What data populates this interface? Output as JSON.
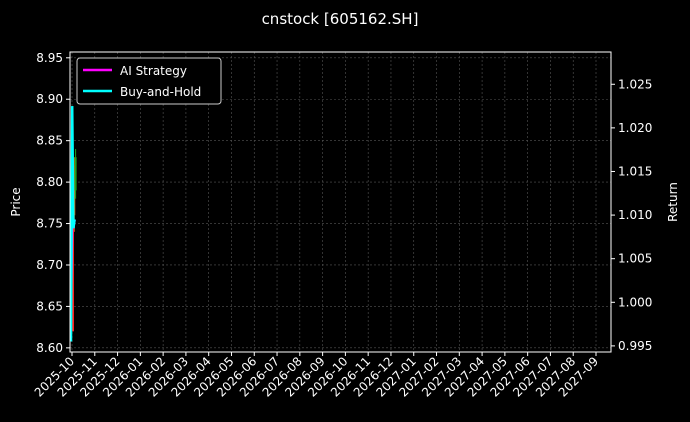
{
  "chart_data": {
    "type": "line",
    "title": "cnstock [605162.SH]",
    "ylabel": "Price",
    "y2label": "Return",
    "ylim": [
      8.595,
      8.957
    ],
    "y2lim": [
      0.9943,
      1.0287
    ],
    "yticks": [
      "8.60",
      "8.65",
      "8.70",
      "8.75",
      "8.80",
      "8.85",
      "8.90",
      "8.95"
    ],
    "y2ticks": [
      "0.995",
      "1.000",
      "1.005",
      "1.010",
      "1.015",
      "1.020",
      "1.025"
    ],
    "xticks": [
      "2025-10",
      "2025-11",
      "2025-12",
      "2026-01",
      "2026-02",
      "2026-03",
      "2026-04",
      "2026-05",
      "2026-06",
      "2026-07",
      "2026-08",
      "2026-09",
      "2026-10",
      "2026-11",
      "2026-12",
      "2027-01",
      "2027-02",
      "2027-03",
      "2027-04",
      "2027-05",
      "2027-06",
      "2027-07",
      "2027-08",
      "2027-09"
    ],
    "grid": true,
    "legend_position": "top-left",
    "candles": [
      {
        "open": 8.62,
        "close": 8.79,
        "high": 8.8,
        "low": 8.62,
        "color": "#ff2020"
      },
      {
        "open": 8.76,
        "close": 8.82,
        "high": 8.83,
        "low": 8.74,
        "color": "#d06010"
      },
      {
        "open": 8.79,
        "close": 8.83,
        "high": 8.84,
        "low": 8.78,
        "color": "#20a020"
      }
    ],
    "series": [
      {
        "name": "AI Strategy",
        "color": "#ff00ff",
        "values": [
          1.0,
          1.0095,
          1.0085,
          1.0095
        ]
      },
      {
        "name": "Buy-and-Hold",
        "color": "#00ffff",
        "values": [
          0.9955,
          1.0225,
          1.0085,
          1.0095
        ]
      }
    ]
  }
}
